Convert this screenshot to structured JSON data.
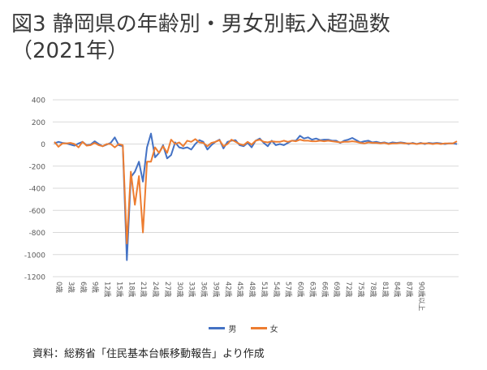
{
  "title": {
    "line1": "図3 静岡県の年齢別・男女別転入超過数",
    "line2": "（2021年）"
  },
  "source": "資料：総務省「住民基本台帳移動報告」より作成",
  "chart_data": {
    "type": "line",
    "ylim": [
      -1200,
      400
    ],
    "yticks": [
      400,
      200,
      0,
      -200,
      -400,
      -600,
      -800,
      -1000,
      -1200
    ],
    "x_tick_labels": [
      "0歳",
      "3歳",
      "6歳",
      "9歳",
      "12歳",
      "15歳",
      "18歳",
      "21歳",
      "24歳",
      "27歳",
      "30歳",
      "33歳",
      "36歳",
      "39歳",
      "42歳",
      "45歳",
      "48歳",
      "51歳",
      "54歳",
      "57歳",
      "60歳",
      "63歳",
      "66歳",
      "69歳",
      "72歳",
      "75歳",
      "78歳",
      "81歳",
      "84歳",
      "87歳",
      "90歳以上"
    ],
    "grid": "horizontal",
    "legend_position": "bottom",
    "series": [
      {
        "name": "男",
        "color": "#4472C4",
        "values": [
          5,
          20,
          10,
          5,
          -5,
          -15,
          5,
          20,
          -10,
          -5,
          25,
          0,
          -20,
          -5,
          10,
          60,
          -10,
          -20,
          -1050,
          -300,
          -250,
          -160,
          -340,
          -30,
          95,
          -120,
          -80,
          -10,
          -130,
          -100,
          15,
          -30,
          -40,
          -30,
          -50,
          0,
          35,
          20,
          -50,
          -10,
          20,
          40,
          -40,
          20,
          30,
          35,
          -10,
          -20,
          10,
          -30,
          30,
          50,
          10,
          -20,
          30,
          -10,
          0,
          -10,
          10,
          30,
          30,
          75,
          50,
          60,
          40,
          50,
          35,
          40,
          40,
          30,
          30,
          10,
          30,
          40,
          55,
          35,
          15,
          25,
          30,
          15,
          20,
          10,
          15,
          5,
          15,
          10,
          15,
          10,
          0,
          10,
          0,
          10,
          0,
          10,
          5,
          10,
          5,
          0,
          5,
          5,
          0
        ]
      },
      {
        "name": "女",
        "color": "#ED7D31",
        "values": [
          20,
          -25,
          5,
          5,
          10,
          0,
          -30,
          20,
          -15,
          -10,
          10,
          -10,
          -20,
          0,
          0,
          -30,
          0,
          -10,
          -900,
          -250,
          -550,
          -290,
          -800,
          -160,
          -160,
          -30,
          -80,
          -20,
          -80,
          40,
          0,
          15,
          -20,
          30,
          20,
          45,
          15,
          10,
          -20,
          10,
          20,
          35,
          -20,
          0,
          40,
          20,
          0,
          -10,
          20,
          -5,
          30,
          40,
          20,
          15,
          25,
          20,
          20,
          30,
          20,
          30,
          25,
          40,
          30,
          30,
          25,
          25,
          30,
          25,
          30,
          25,
          20,
          15,
          20,
          20,
          25,
          20,
          10,
          5,
          15,
          10,
          10,
          5,
          10,
          0,
          5,
          5,
          10,
          5,
          5,
          5,
          0,
          5,
          5,
          5,
          0,
          5,
          0,
          5,
          5,
          5,
          25
        ]
      }
    ]
  }
}
